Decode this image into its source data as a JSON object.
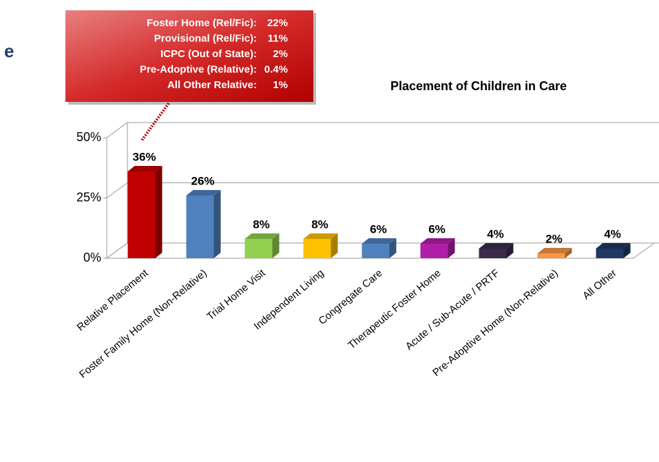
{
  "slide_fragment": "e",
  "chart_data": {
    "type": "bar3d",
    "title": "Placement of Children in Care",
    "categories": [
      "Relative Placement",
      "Foster Family Home (Non-Relative)",
      "Trial Home Visit",
      "Independent Living",
      "Congregate Care",
      "Therapeutic Foster Home",
      "Acute / Sub-Acute / PRTF",
      "Pre-Adoptive Home (Non-Relative)",
      "All Other"
    ],
    "values": [
      36,
      26,
      8,
      8,
      6,
      6,
      4,
      2,
      4
    ],
    "value_labels": [
      "36%",
      "26%",
      "8%",
      "8%",
      "6%",
      "6%",
      "4%",
      "2%",
      "4%"
    ],
    "colors": [
      "#c00000",
      "#4f81bd",
      "#92d050",
      "#ffc000",
      "#4f81bd",
      "#b01ea8",
      "#3b2a4a",
      "#f79646",
      "#1f3864"
    ],
    "ylim": [
      0,
      50
    ],
    "yticks": [
      {
        "value": 0,
        "label": "0%"
      },
      {
        "value": 25,
        "label": "25%"
      },
      {
        "value": 50,
        "label": "50%"
      }
    ],
    "grid": true,
    "callout": {
      "labels": [
        "Foster Home (Rel/Fic):",
        "Provisional (Rel/Fic):",
        "ICPC (Out of State):",
        "Pre-Adoptive (Relative):",
        "All Other Relative:"
      ],
      "values": [
        22,
        11,
        2,
        0.4,
        1
      ],
      "value_labels": [
        "22%",
        "11%",
        "2%",
        "0.4%",
        "1%"
      ]
    }
  }
}
